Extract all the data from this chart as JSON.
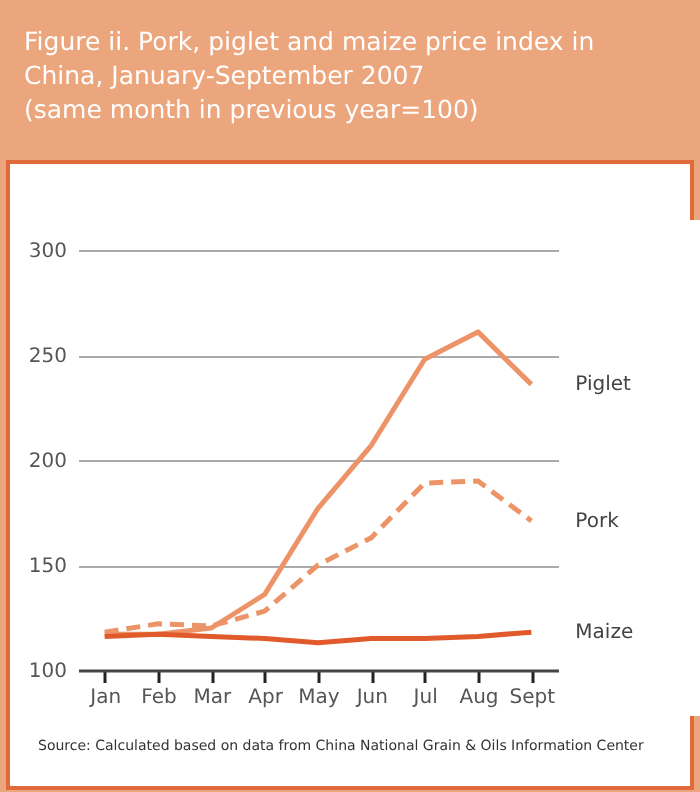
{
  "chart_data": {
    "type": "line",
    "title": "Figure ii. Pork, piglet and maize price index in China, January-September 2007",
    "subtitle": "(same month in previous year=100)",
    "categories": [
      "Jan",
      "Feb",
      "Mar",
      "Apr",
      "May",
      "Jun",
      "Jul",
      "Aug",
      "Sept"
    ],
    "series": [
      {
        "name": "Piglet",
        "color": "#ec9468",
        "line_style": "solid",
        "values": [
          117,
          117,
          120,
          136,
          177,
          207,
          248,
          261,
          236
        ]
      },
      {
        "name": "Pork",
        "color": "#ec9468",
        "line_style": "dashed",
        "values": [
          118,
          122,
          121,
          128,
          150,
          163,
          189,
          190,
          171
        ]
      },
      {
        "name": "Maize",
        "color": "#e05a2b",
        "line_style": "solid",
        "values": [
          116,
          117,
          116,
          115,
          113,
          115,
          115,
          116,
          118
        ]
      }
    ],
    "ylim": [
      100,
      300
    ],
    "yticks": [
      100,
      150,
      200,
      250,
      300
    ],
    "grid": "y",
    "annotations": [
      "Source: Calculated based on data from China National Grain & Oils Information Center"
    ]
  }
}
